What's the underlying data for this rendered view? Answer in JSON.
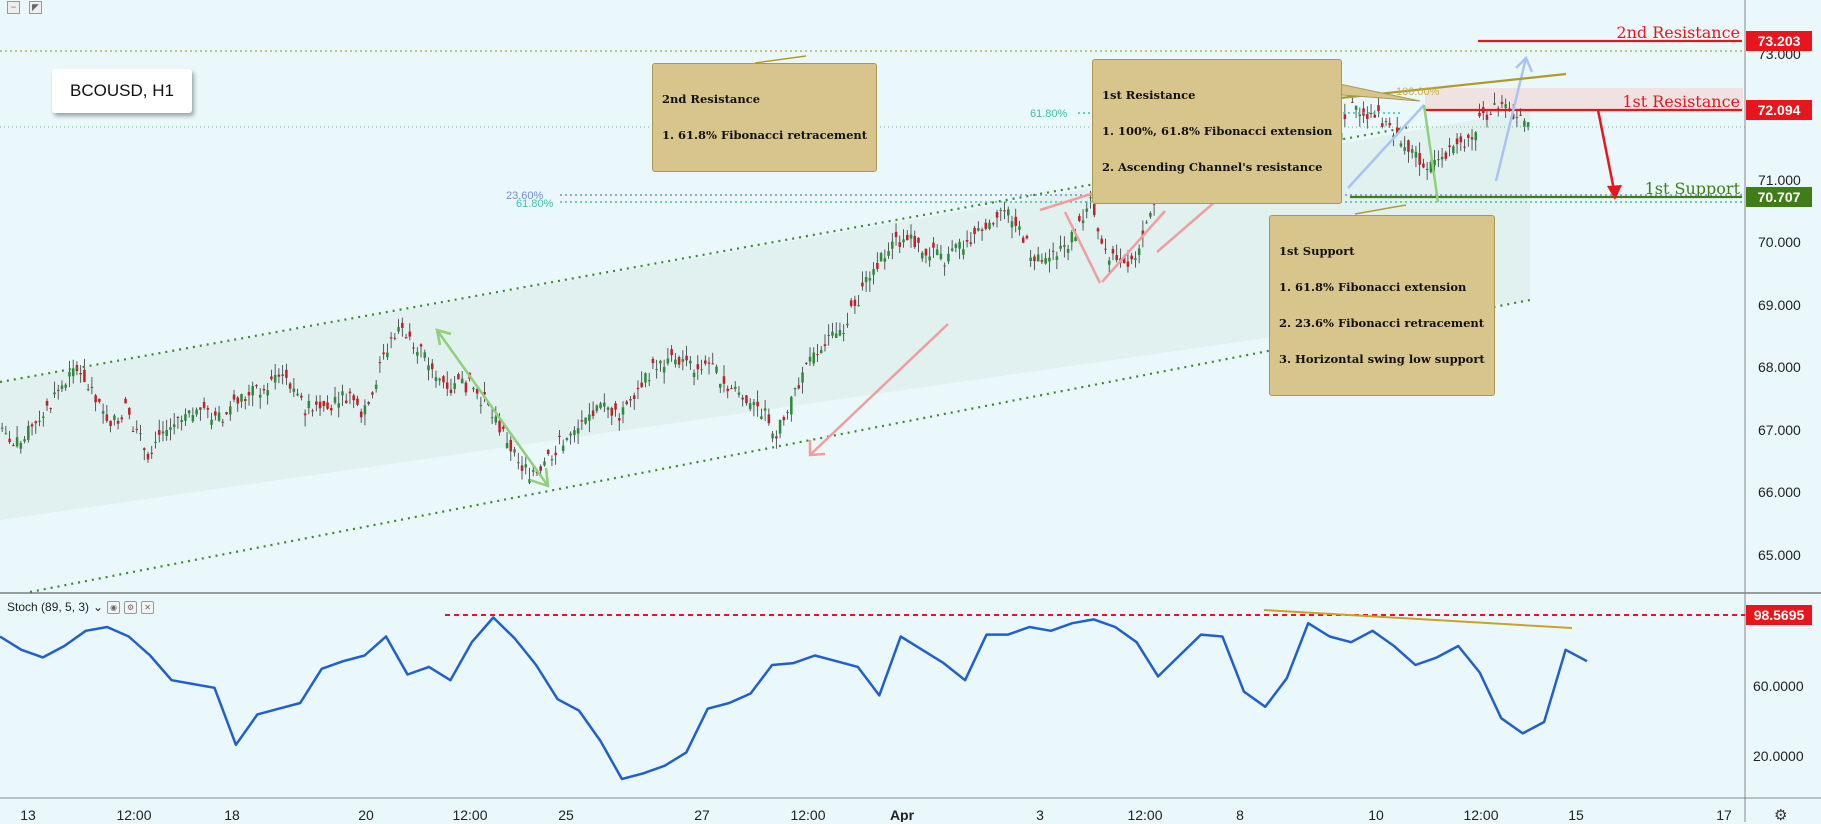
{
  "symbol": "BCOUSD, H1",
  "indicator": {
    "label": "Stoch (89, 5, 3)",
    "chevron": "chevron-down-icon",
    "level_label": "98.5695"
  },
  "price_axis": {
    "ticks": [
      "73.000",
      "72.000",
      "71.000",
      "70.000",
      "69.000",
      "68.000",
      "67.000",
      "66.000",
      "65.000"
    ],
    "price_range": [
      64.4,
      73.7
    ]
  },
  "stoch_axis": {
    "ticks": [
      "60.0000",
      "20.0000"
    ]
  },
  "time_axis": {
    "ticks": [
      "13",
      "12:00",
      "18",
      "20",
      "12:00",
      "25",
      "27",
      "12:00",
      "Apr",
      "3",
      "12:00",
      "8",
      "10",
      "12:00",
      "15",
      "17"
    ]
  },
  "levels": {
    "second_resistance": {
      "label": "2nd Resistance",
      "value": "73.203",
      "color": "#e8161c"
    },
    "first_resistance": {
      "label": "1st Resistance",
      "value": "72.094",
      "color": "#e8161c"
    },
    "first_support": {
      "label": "1st Support",
      "value": "70.707",
      "color": "#3f7d17"
    }
  },
  "fib_labels": {
    "a": "61.80%",
    "b": "100.00%",
    "c": "23.60%",
    "d": "61.80%"
  },
  "notes": {
    "second_resistance": [
      "2nd Resistance",
      "1. 61.8% Fibonacci retracement"
    ],
    "first_resistance": [
      "1st Resistance",
      "1. 100%, 61.8% Fibonacci extension",
      "2. Ascending Channel's resistance"
    ],
    "first_support": [
      "1st Support",
      "1. 61.8% Fibonacci extension",
      "2. 23.6% Fibonacci retracement",
      "3. Horizontal swing low support"
    ]
  },
  "colors": {
    "up": "#2e8b3a",
    "down": "#c0222a",
    "stoch_line": "#1f5fd0",
    "channel": "#3a8a2a",
    "background": "#eaf8fb"
  },
  "chart_data": {
    "type": "line",
    "title": "BCOUSD, H1",
    "series": [
      {
        "values": [
          66.9,
          66.7,
          66.8,
          67.1,
          67.3,
          67.6,
          67.8,
          67.9,
          67.5,
          67.2,
          67.1,
          67.3,
          66.9,
          66.6,
          66.9,
          67.0,
          67.1,
          67.2,
          67.3,
          67.1,
          67.2,
          67.4,
          67.5,
          67.6,
          67.7,
          67.9,
          67.5,
          67.3,
          67.4,
          67.3,
          67.5,
          67.5,
          67.2,
          67.6,
          68.1,
          68.5,
          68.5,
          68.3,
          68.0,
          67.8,
          67.6,
          67.7,
          67.6,
          67.4,
          67.1,
          66.8,
          66.4,
          66.3,
          66.4,
          66.6,
          66.8,
          66.9,
          67.1,
          67.3,
          67.3,
          67.2,
          67.5,
          67.7,
          67.9,
          68.0,
          68.1,
          68.0,
          67.9,
          68.0,
          67.8,
          67.6,
          67.5,
          67.4,
          67.2,
          66.9,
          67.2,
          67.7,
          68.0,
          68.3,
          68.4,
          68.6,
          68.9,
          69.3,
          69.6,
          69.8,
          69.9,
          70.0,
          69.8,
          69.7,
          69.6,
          69.8,
          69.9,
          70.1,
          70.2,
          70.4,
          70.3,
          70.0,
          69.6,
          69.6,
          69.8,
          69.9,
          70.2,
          70.5,
          69.8,
          69.7,
          69.6,
          69.7,
          70.3,
          70.7,
          71.0,
          71.1,
          71.2,
          71.3,
          71.5,
          71.6,
          71.7,
          71.6,
          71.5,
          71.2,
          71.0,
          71.1,
          71.2,
          71.3,
          71.2,
          71.5,
          72.1,
          72.0,
          71.9,
          71.8,
          71.7,
          71.5,
          71.3,
          71.0,
          71.2,
          71.3,
          71.4,
          71.5,
          71.9,
          72.0,
          72.0,
          71.9,
          71.8
        ]
      }
    ],
    "stoch": [
      85,
      78,
      74,
      80,
      88,
      90,
      85,
      75,
      62,
      60,
      58,
      28,
      44,
      47,
      50,
      68,
      72,
      75,
      85,
      65,
      69,
      62,
      82,
      95,
      84,
      70,
      52,
      46,
      30,
      10,
      13,
      17,
      24,
      47,
      50,
      55,
      70,
      71,
      75,
      72,
      69,
      54,
      85,
      78,
      71,
      62,
      86,
      86,
      90,
      88,
      92,
      94,
      90,
      82,
      64,
      75,
      86,
      85,
      56,
      48,
      63,
      92,
      85,
      82,
      88,
      80,
      70,
      74,
      80,
      66,
      42,
      34,
      40,
      78,
      72
    ],
    "stoch_level": 98.5695
  }
}
